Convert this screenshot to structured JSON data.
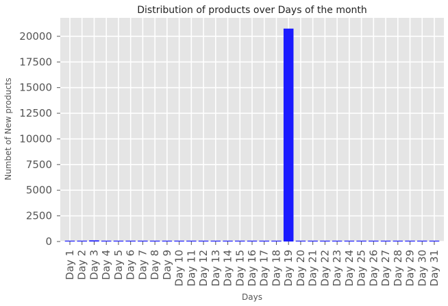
{
  "chart_data": {
    "type": "bar",
    "title": "Distribution of products over Days of the month",
    "xlabel": "Days",
    "ylabel": "Numbet of New products",
    "categories": [
      "Day 1",
      "Day 2",
      "Day 3",
      "Day 4",
      "Day 5",
      "Day 6",
      "Day 7",
      "Day 8",
      "Day 9",
      "Day 10",
      "Day 11",
      "Day 12",
      "Day 13",
      "Day 14",
      "Day 15",
      "Day 16",
      "Day 17",
      "Day 18",
      "Day 19",
      "Day 20",
      "Day 21",
      "Day 22",
      "Day 23",
      "Day 24",
      "Day 25",
      "Day 26",
      "Day 27",
      "Day 28",
      "Day 29",
      "Day 30",
      "Day 31"
    ],
    "values": [
      60,
      50,
      110,
      40,
      30,
      50,
      40,
      60,
      40,
      30,
      40,
      40,
      40,
      50,
      30,
      40,
      30,
      40,
      20750,
      40,
      30,
      40,
      30,
      40,
      30,
      40,
      30,
      40,
      30,
      40,
      40
    ],
    "ylim": [
      0,
      21800
    ],
    "yticks": [
      "0",
      "2500",
      "5000",
      "7500",
      "10000",
      "12500",
      "15000",
      "17500",
      "20000"
    ],
    "grid": true,
    "bar_color": "#1a1aff",
    "background_color": "#e5e5e5",
    "grid_color": "#ffffff"
  }
}
